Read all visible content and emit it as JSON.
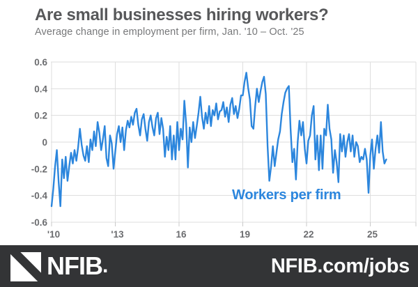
{
  "header": {
    "title": "Are small businesses hiring workers?",
    "subtitle": "Average change in employment per firm, Jan. '10 – Oct. '25"
  },
  "chart_data": {
    "type": "line",
    "title": "Are small businesses hiring workers?",
    "subtitle": "Average change in employment per firm, Jan. '10 – Oct. '25",
    "xlabel": "",
    "ylabel": "",
    "x_unit": "month",
    "x_start": "2010-01",
    "x_end": "2025-10",
    "n_points": 190,
    "ylim": [
      -0.6,
      0.6
    ],
    "grid": true,
    "legend_position": "inline-annotation",
    "annotation": "Workers per firm",
    "ytick_values": [
      0.6,
      0.4,
      0.2,
      0,
      -0.2,
      -0.4,
      -0.6
    ],
    "ytick_labels": [
      "0.6",
      "0.4",
      "0.2",
      "0",
      "-0.2",
      "-0.4",
      "-0.6"
    ],
    "xticks": [
      {
        "label": "'10",
        "month_index": 0
      },
      {
        "label": "'13",
        "month_index": 36
      },
      {
        "label": "16",
        "month_index": 72
      },
      {
        "label": "19",
        "month_index": 108
      },
      {
        "label": "22",
        "month_index": 144
      },
      {
        "label": "25",
        "month_index": 180
      }
    ],
    "series": [
      {
        "name": "Workers per firm",
        "color": "#2c86dd",
        "values": [
          -0.48,
          -0.35,
          -0.18,
          -0.06,
          -0.3,
          -0.48,
          -0.13,
          -0.27,
          -0.11,
          -0.29,
          -0.18,
          -0.08,
          -0.16,
          -0.06,
          -0.14,
          -0.04,
          0.1,
          -0.02,
          -0.1,
          -0.14,
          -0.03,
          -0.15,
          0.02,
          -0.06,
          0.08,
          -0.03,
          0.15,
          0.07,
          -0.06,
          0.02,
          0.12,
          -0.12,
          -0.18,
          0.05,
          -0.01,
          -0.2,
          -0.07,
          0.06,
          0.12,
          0.0,
          0.11,
          -0.06,
          0.09,
          0.16,
          0.11,
          0.19,
          0.13,
          0.22,
          0.25,
          0.13,
          0.05,
          0.17,
          0.21,
          0.1,
          0.01,
          0.15,
          0.2,
          0.11,
          0.05,
          0.18,
          0.22,
          0.06,
          0.18,
          0.1,
          -0.11,
          0.04,
          -0.06,
          0.12,
          -0.13,
          0.05,
          -0.13,
          0.15,
          -0.06,
          0.1,
          0.02,
          0.31,
          0.14,
          -0.19,
          0.11,
          0.0,
          0.15,
          0.03,
          0.12,
          0.22,
          0.34,
          0.19,
          0.1,
          0.22,
          0.14,
          0.27,
          0.12,
          0.24,
          0.2,
          0.29,
          0.17,
          0.23,
          0.24,
          0.3,
          0.19,
          0.26,
          0.15,
          0.28,
          0.33,
          0.21,
          0.27,
          0.18,
          0.25,
          0.35,
          0.35,
          0.45,
          0.52,
          0.41,
          0.32,
          0.12,
          0.1,
          0.27,
          0.4,
          0.3,
          0.38,
          0.45,
          0.49,
          0.36,
          -0.03,
          -0.29,
          -0.18,
          -0.03,
          -0.18,
          -0.08,
          0.02,
          0.08,
          0.21,
          0.3,
          0.37,
          0.4,
          0.42,
          0.1,
          -0.15,
          -0.05,
          -0.28,
          0.0,
          0.16,
          0.05,
          0.15,
          -0.05,
          -0.16,
          0.01,
          0.05,
          0.2,
          0.27,
          -0.13,
          0.05,
          -0.21,
          0.05,
          -0.2,
          0.1,
          0.05,
          0.28,
          0.1,
          0.02,
          -0.23,
          -0.06,
          -0.15,
          -0.3,
          0.06,
          -0.07,
          0.05,
          -0.11,
          0.0,
          0.06,
          -0.07,
          0.05,
          -0.11,
          0.0,
          -0.03,
          -0.15,
          -0.11,
          -0.13,
          -0.05,
          -0.13,
          -0.38,
          -0.1,
          0.02,
          -0.2,
          -0.05,
          0.05,
          -0.08,
          0.15,
          -0.07,
          -0.16,
          -0.13
        ]
      }
    ]
  },
  "footer": {
    "brand": "NFIB",
    "brand_suffix": ".",
    "brand_mark": "nfib-flag-logo",
    "url": "NFIB.com/jobs"
  },
  "colors": {
    "line": "#2c86dd",
    "title": "#57585a",
    "subtitle": "#77787a",
    "axis_labels": "#6b6c6f",
    "gridline": "#dedede",
    "tick": "#c9c9c9",
    "footer_bg": "#333436",
    "footer_text": "#ffffff"
  }
}
